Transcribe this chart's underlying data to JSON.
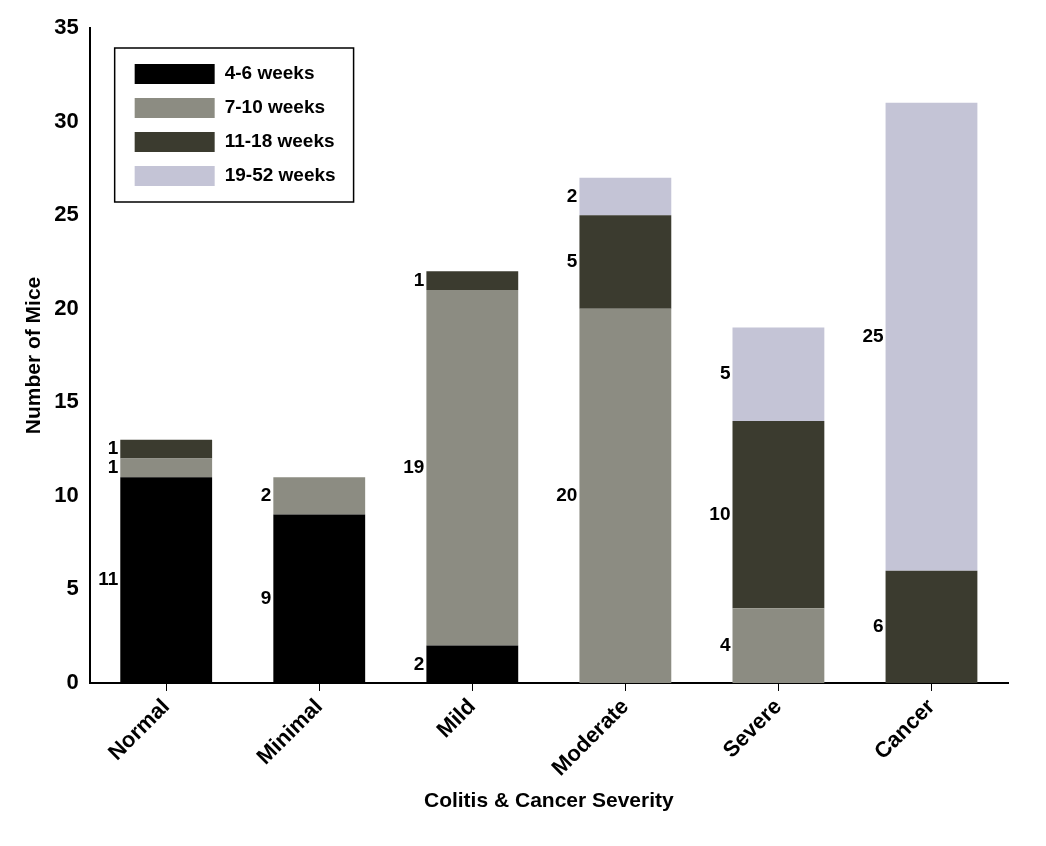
{
  "chart_data": {
    "type": "bar",
    "stacked": true,
    "xlabel": "Colitis & Cancer Severity",
    "ylabel": "Number of Mice",
    "categories": [
      "Normal",
      "Minimal",
      "Mild",
      "Moderate",
      "Severe",
      "Cancer"
    ],
    "series": [
      {
        "name": "4-6 weeks",
        "color": "#000000",
        "values": [
          11,
          9,
          2,
          null,
          null,
          null
        ]
      },
      {
        "name": "7-10 weeks",
        "color": "#8c8c82",
        "values": [
          1,
          2,
          19,
          20,
          4,
          null
        ]
      },
      {
        "name": "11-18 weeks",
        "color": "#3b3b2f",
        "values": [
          1,
          null,
          1,
          5,
          10,
          6
        ]
      },
      {
        "name": "19-52 weeks",
        "color": "#c4c4d6",
        "values": [
          null,
          null,
          null,
          2,
          5,
          25
        ]
      }
    ],
    "ylim": [
      0,
      35
    ],
    "yticks": [
      0,
      5,
      10,
      15,
      20,
      25,
      30,
      35
    ],
    "grid": false,
    "legend": "top left",
    "data_labels": true
  }
}
